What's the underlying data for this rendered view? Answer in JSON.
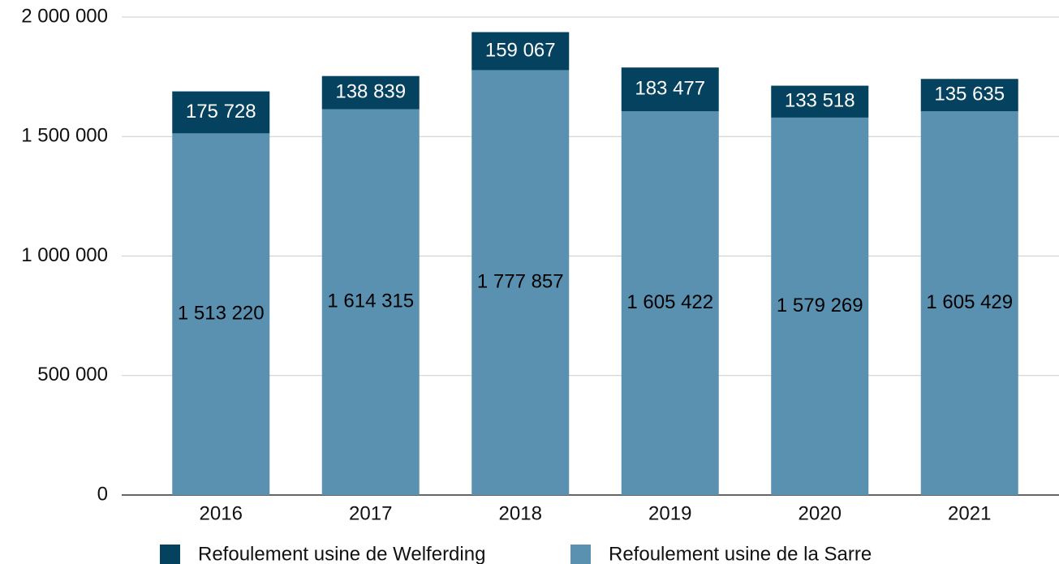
{
  "chart_data": {
    "type": "stacked_bar",
    "categories": [
      "2016",
      "2017",
      "2018",
      "2019",
      "2020",
      "2021"
    ],
    "series": [
      {
        "name": "Refoulement usine de Welferding",
        "color": "#05425f",
        "label_color": "#ffffff",
        "values": [
          175728,
          138839,
          159067,
          183477,
          133518,
          135635
        ],
        "value_labels": [
          "175 728",
          "138 839",
          "159 067",
          "183 477",
          "133 518",
          "135 635"
        ]
      },
      {
        "name": "Refoulement usine de la Sarre",
        "color": "#5a91b0",
        "label_color": "#000000",
        "values": [
          1513220,
          1614315,
          1777857,
          1605422,
          1579269,
          1605429
        ],
        "value_labels": [
          "1 513 220",
          "1 614 315",
          "1 777 857",
          "1 605 422",
          "1 579 269",
          "1 605 429"
        ]
      }
    ],
    "ylim": [
      0,
      2000000
    ],
    "yticks": [
      0,
      {
        "value": 500000,
        "label": "500 000"
      },
      {
        "value": 1000000,
        "label": "1 000 000"
      },
      {
        "value": 1500000,
        "label": "1 500 000"
      },
      {
        "value": 2000000,
        "label": "2 000 000"
      }
    ],
    "grid": true,
    "legend": "bottom"
  }
}
